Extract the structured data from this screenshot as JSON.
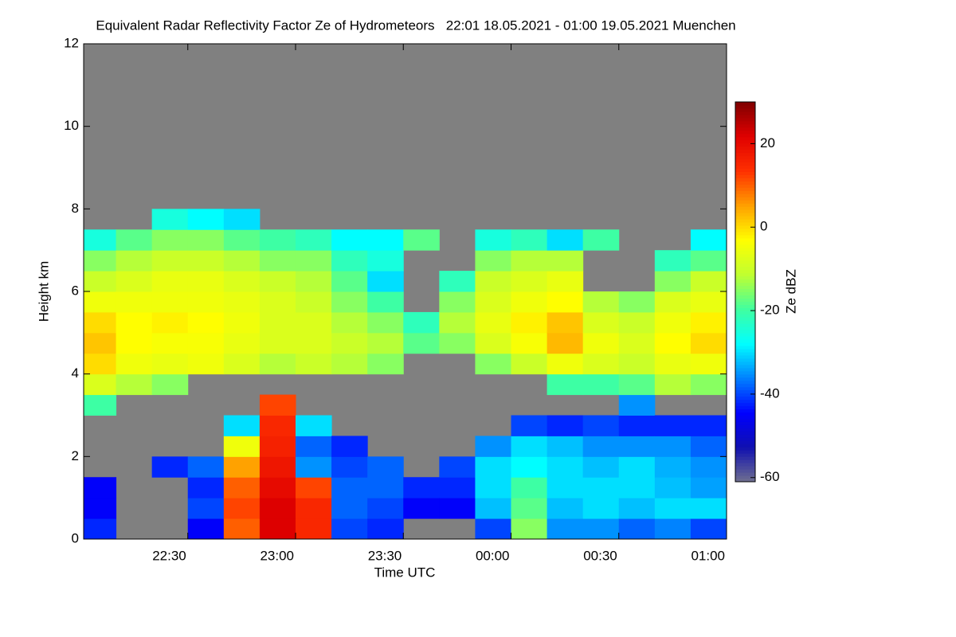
{
  "chart_data": {
    "type": "heatmap",
    "title": "Equivalent Radar Reflectivity Factor Ze of Hydrometeors   22:01 18.05.2021 - 01:00 19.05.2021 Muenchen",
    "x_label": "Time UTC",
    "y_label": "Height km",
    "colorbar_label": "Ze dBZ",
    "background": "#808080",
    "xlim": [
      1,
      180
    ],
    "xticks": [
      {
        "value": 30,
        "label": "22:30"
      },
      {
        "value": 60,
        "label": "23:00"
      },
      {
        "value": 90,
        "label": "23:30"
      },
      {
        "value": 120,
        "label": "00:00"
      },
      {
        "value": 150,
        "label": "00:30"
      },
      {
        "value": 180,
        "label": "01:00"
      }
    ],
    "ylim": [
      0,
      12
    ],
    "yticks": [
      0,
      2,
      4,
      6,
      8,
      10,
      12
    ],
    "zlim": [
      -61,
      30
    ],
    "zticks": [
      20,
      0,
      -20,
      -40,
      -60
    ],
    "colormap": [
      "#707090",
      "#1010b0",
      "#0000ff",
      "#0080ff",
      "#00ffff",
      "#40ffa0",
      "#c0ff30",
      "#ffff00",
      "#ffa000",
      "#ff3000",
      "#e00000",
      "#800000"
    ],
    "x_bins": [
      1,
      10,
      20,
      30,
      40,
      50,
      60,
      70,
      80,
      90,
      100,
      110,
      120,
      130,
      140,
      150,
      160,
      170,
      180
    ],
    "y_bins": [
      0,
      0.5,
      1,
      1.5,
      2,
      2.5,
      3,
      3.5,
      4,
      4.5,
      5,
      5.5,
      6,
      6.5,
      7,
      7.5,
      8
    ],
    "z": [
      [
        -42,
        -45,
        -45,
        null,
        null,
        null,
        -20,
        -8,
        0,
        2,
        0,
        -5,
        -10,
        -15,
        -25,
        null
      ],
      [
        null,
        null,
        null,
        null,
        null,
        null,
        null,
        -12,
        -5,
        -3,
        -3,
        -5,
        -8,
        -12,
        -18,
        null
      ],
      [
        null,
        null,
        null,
        -42,
        null,
        null,
        null,
        -15,
        -6,
        -4,
        -2,
        -5,
        -6,
        -10,
        -15,
        -25
      ],
      [
        -45,
        -40,
        -42,
        -38,
        null,
        null,
        null,
        null,
        -5,
        -4,
        -3,
        -5,
        -6,
        -10,
        -15,
        -28
      ],
      [
        10,
        12,
        10,
        5,
        -5,
        -30,
        null,
        null,
        -8,
        -6,
        -5,
        -6,
        -8,
        -12,
        -18,
        -30
      ],
      [
        22,
        22,
        20,
        18,
        16,
        15,
        12,
        null,
        -12,
        -8,
        -8,
        -8,
        -10,
        -15,
        -20,
        null
      ],
      [
        15,
        15,
        12,
        -35,
        -38,
        -30,
        null,
        null,
        -10,
        -8,
        -8,
        -10,
        -12,
        -15,
        -22,
        null
      ],
      [
        -40,
        -38,
        -38,
        -40,
        -42,
        null,
        null,
        null,
        -12,
        -10,
        -12,
        -15,
        -18,
        -22,
        -28,
        null
      ],
      [
        -42,
        -40,
        -38,
        -38,
        null,
        null,
        null,
        null,
        -15,
        -12,
        -15,
        -20,
        -30,
        -25,
        -28,
        null
      ],
      [
        null,
        -45,
        -42,
        null,
        null,
        null,
        null,
        null,
        null,
        -18,
        -22,
        null,
        null,
        null,
        -18,
        null
      ],
      [
        null,
        -45,
        -42,
        -40,
        null,
        null,
        null,
        null,
        null,
        -15,
        -12,
        -15,
        -22,
        null,
        null,
        null
      ],
      [
        -40,
        -32,
        -30,
        -30,
        -35,
        null,
        null,
        null,
        -15,
        -8,
        -6,
        -8,
        -10,
        -15,
        -25,
        null
      ],
      [
        -15,
        -18,
        -20,
        -28,
        -30,
        -40,
        null,
        null,
        -10,
        -4,
        -2,
        -5,
        -8,
        -12,
        -22,
        null
      ],
      [
        -35,
        -32,
        -30,
        -30,
        -32,
        -42,
        null,
        -20,
        -5,
        3,
        2,
        -3,
        -6,
        -12,
        -30,
        null
      ],
      [
        -35,
        -30,
        -30,
        -32,
        -35,
        -40,
        null,
        -20,
        -8,
        -5,
        -8,
        -12,
        null,
        null,
        -20,
        null
      ],
      [
        -38,
        -32,
        -30,
        -30,
        -35,
        -42,
        -35,
        -18,
        -10,
        -8,
        -10,
        -15,
        null,
        null,
        null,
        null
      ],
      [
        -36,
        -30,
        -32,
        -33,
        -35,
        -42,
        null,
        -12,
        -6,
        -3,
        -5,
        -8,
        -15,
        -22,
        null,
        null
      ],
      [
        -40,
        -30,
        -34,
        -35,
        -38,
        -42,
        null,
        -15,
        -5,
        0,
        -2,
        -6,
        -10,
        -18,
        -28,
        null
      ]
    ]
  }
}
